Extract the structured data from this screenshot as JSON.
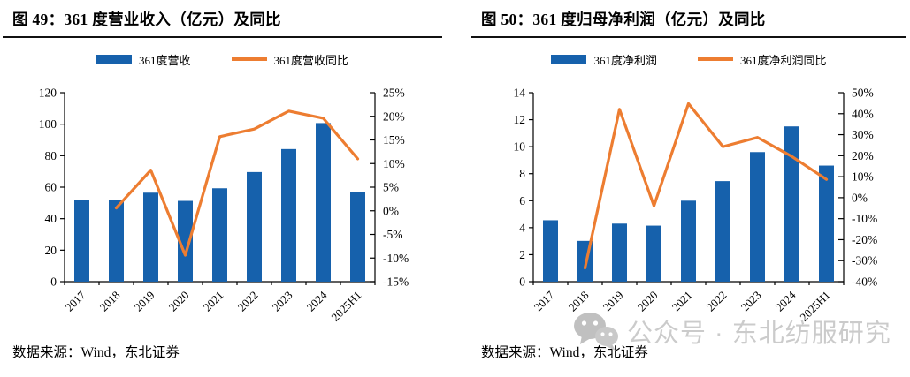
{
  "watermark": {
    "label": "公众号 · 东北纺服研究",
    "icon": "wechat-icon"
  },
  "source_label": "数据来源：Wind，东北证券",
  "colors": {
    "bar_blue": "#1661AC",
    "line_orange": "#ED7D31",
    "axis_black": "#000000",
    "watermark_gray": "#C9C9C9"
  },
  "chart_data": [
    {
      "type": "bar",
      "subtype": "bar+line-dual-axis",
      "title": "图 49：361 度营业收入（亿元）及同比",
      "categories": [
        "2017",
        "2018",
        "2019",
        "2020",
        "2021",
        "2022",
        "2023",
        "2024",
        "2025H1"
      ],
      "series": [
        {
          "name": "361度营收",
          "type": "bar",
          "axis": "left",
          "values": [
            52,
            51.9,
            56.5,
            51.3,
            59.3,
            69.6,
            84.2,
            100.7,
            57
          ]
        },
        {
          "name": "361度营收同比",
          "type": "line",
          "axis": "right",
          "unit": "%",
          "values": [
            null,
            0.6,
            8.6,
            -9.4,
            15.7,
            17.3,
            21.1,
            19.6,
            11.0
          ]
        }
      ],
      "left_axis": {
        "min": 0,
        "max": 120,
        "step": 20,
        "suffix": ""
      },
      "right_axis": {
        "min": -15,
        "max": 25,
        "step": 5,
        "suffix": "%"
      },
      "legend_position": "top",
      "grid": false,
      "xlabel": "",
      "ylabel": ""
    },
    {
      "type": "bar",
      "subtype": "bar+line-dual-axis",
      "title": "图 50：361 度归母净利润（亿元）及同比",
      "categories": [
        "2017",
        "2018",
        "2019",
        "2020",
        "2021",
        "2022",
        "2023",
        "2024",
        "2025H1"
      ],
      "series": [
        {
          "name": "361度净利润",
          "type": "bar",
          "axis": "left",
          "values": [
            4.55,
            3.02,
            4.3,
            4.15,
            6.0,
            7.45,
            9.6,
            11.5,
            8.6
          ]
        },
        {
          "name": "361度净利润同比",
          "type": "line",
          "axis": "right",
          "unit": "%",
          "values": [
            null,
            -33.5,
            42.1,
            -3.9,
            44.8,
            24.3,
            28.7,
            19.6,
            8.7
          ]
        }
      ],
      "left_axis": {
        "min": 0,
        "max": 14,
        "step": 2,
        "suffix": ""
      },
      "right_axis": {
        "min": -40,
        "max": 50,
        "step": 10,
        "suffix": "%"
      },
      "legend_position": "top",
      "grid": false,
      "xlabel": "",
      "ylabel": ""
    }
  ]
}
